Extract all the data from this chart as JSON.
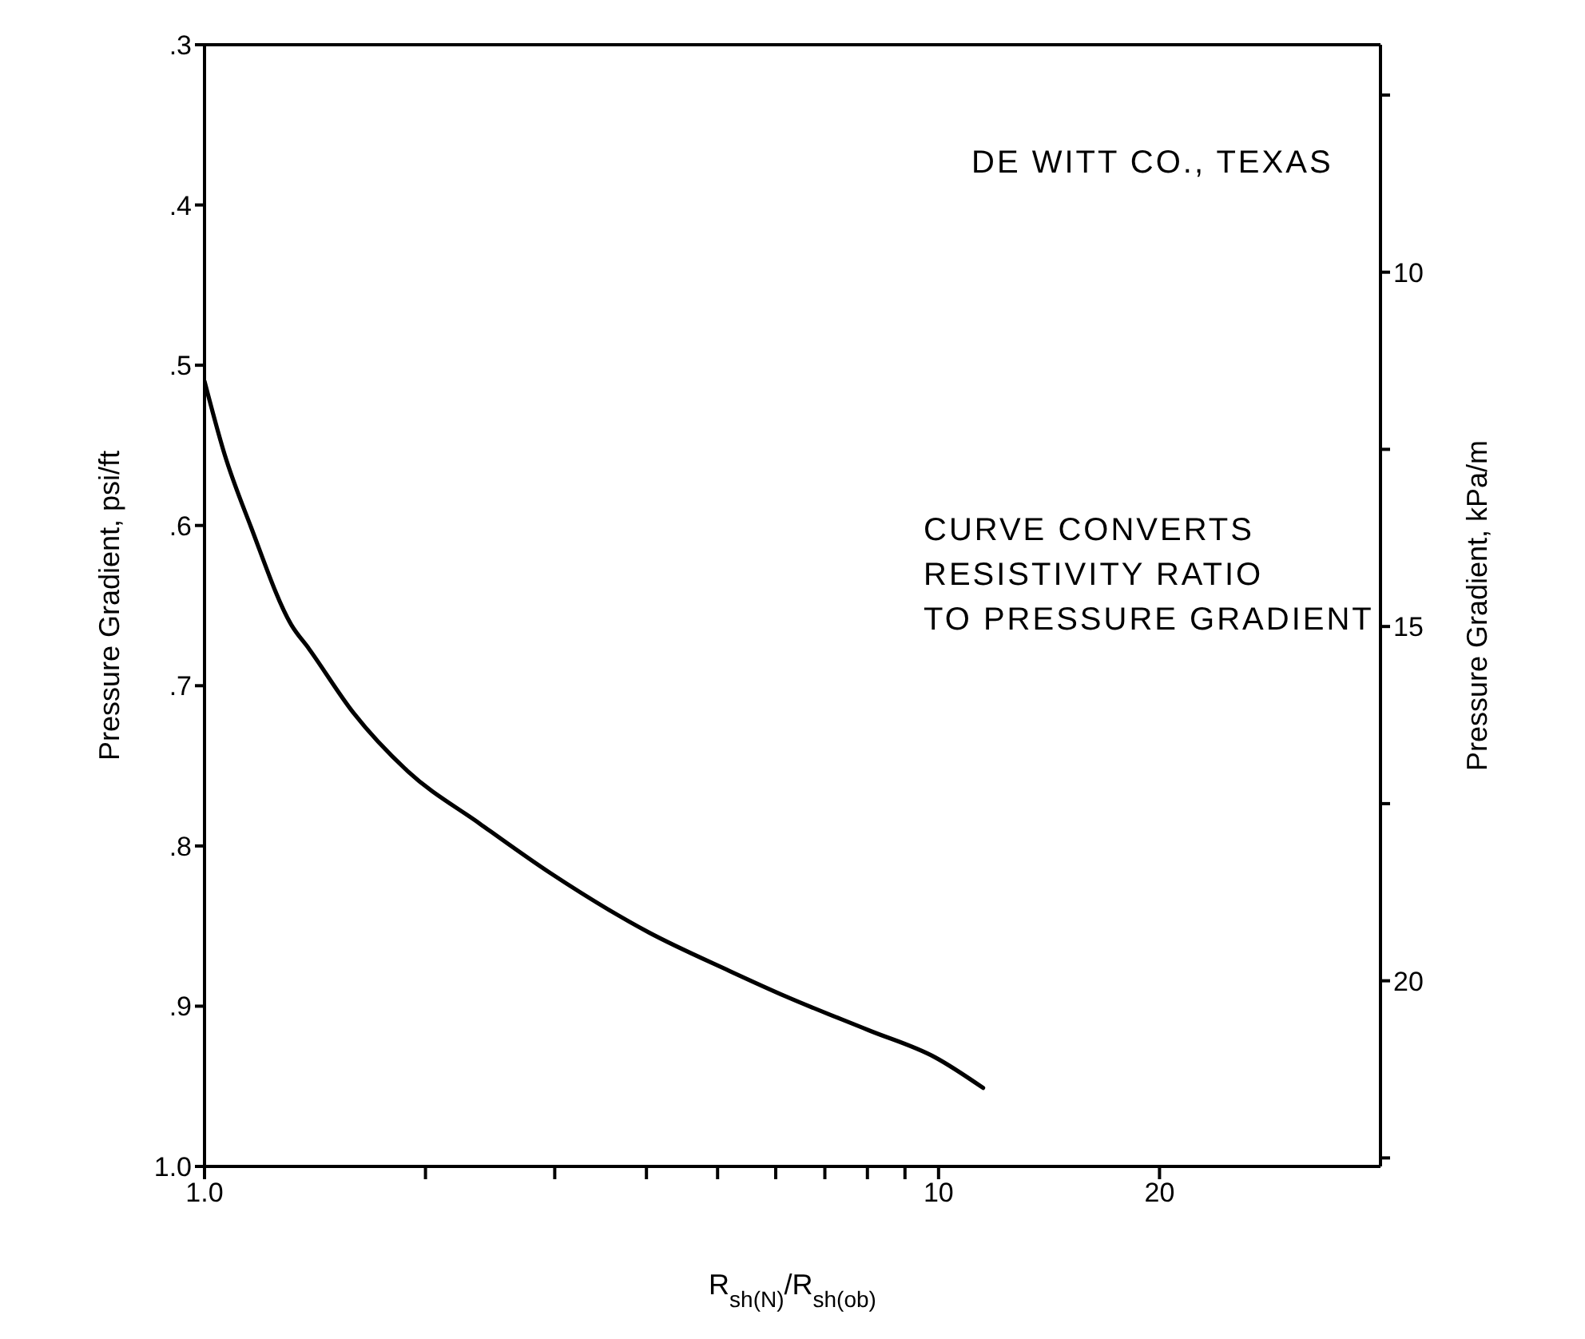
{
  "chart_data": {
    "type": "line",
    "xlabel": "R$_{sh(N)}$/R$_{sh(ob)}$",
    "ylabel": "Pressure Gradient, psi/ft",
    "y2label": "Pressure Gradient, kPa/m",
    "annotations": [
      "DE WITT CO., TEXAS",
      "CURVE CONVERTS\nRESISTIVITY RATIO\nTO PRESSURE GRADIENT"
    ],
    "log": "x",
    "marker": "none",
    "line_style": "solid",
    "xlim": [
      1,
      40
    ],
    "xticks": [
      {
        "value": 1,
        "label": "1.0"
      },
      {
        "value": 2,
        "label": null
      },
      {
        "value": 3,
        "label": null
      },
      {
        "value": 4,
        "label": null
      },
      {
        "value": 5,
        "label": null
      },
      {
        "value": 6,
        "label": null
      },
      {
        "value": 7,
        "label": null
      },
      {
        "value": 8,
        "label": null
      },
      {
        "value": 9,
        "label": null
      },
      10,
      20
    ],
    "ylim": [
      1.0,
      0.3
    ],
    "yticks": [
      {
        "value": 0.3,
        "label": ".3"
      },
      {
        "value": 0.4,
        "label": ".4"
      },
      {
        "value": 0.5,
        "label": ".5"
      },
      {
        "value": 0.6,
        "label": ".6"
      },
      {
        "value": 0.7,
        "label": ".7"
      },
      {
        "value": 0.8,
        "label": ".8"
      },
      {
        "value": 0.9,
        "label": ".9"
      },
      {
        "value": 1.0,
        "label": "1.0"
      }
    ],
    "y2lim": [
      22.62,
      6.79
    ],
    "y2ticks": [
      {
        "value": 7.5,
        "label": null
      },
      10,
      {
        "value": 12.5,
        "label": null
      },
      15,
      {
        "value": 17.5,
        "label": null
      },
      20,
      {
        "value": 22.5,
        "label": null
      }
    ],
    "series": [
      {
        "color": "#000000",
        "x": [
          1.0,
          1.064,
          1.157,
          1.313,
          1.388,
          1.596,
          1.888,
          2.37,
          2.96,
          4.03,
          5.19,
          6.2,
          8.03,
          9.9,
          11.5
        ],
        "values": [
          0.51,
          0.555,
          0.601,
          0.662,
          0.677,
          0.717,
          0.753,
          0.786,
          0.817,
          0.854,
          0.878,
          0.894,
          0.915,
          0.932,
          0.951
        ]
      }
    ]
  }
}
